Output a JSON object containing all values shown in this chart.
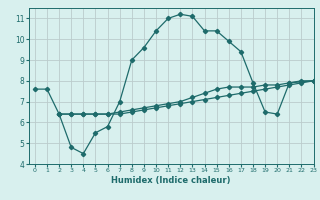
{
  "xlabel": "Humidex (Indice chaleur)",
  "bg_color": "#d8f0ee",
  "line_color": "#1e6b6b",
  "grid_color": "#bbcccc",
  "xlim": [
    -0.5,
    23
  ],
  "ylim": [
    4,
    11.5
  ],
  "xticks": [
    0,
    1,
    2,
    3,
    4,
    5,
    6,
    7,
    8,
    9,
    10,
    11,
    12,
    13,
    14,
    15,
    16,
    17,
    18,
    19,
    20,
    21,
    22,
    23
  ],
  "yticks": [
    4,
    5,
    6,
    7,
    8,
    9,
    10,
    11
  ],
  "line1": {
    "x": [
      0,
      1,
      2,
      3,
      4,
      5,
      6,
      7,
      8,
      9,
      10,
      11,
      12,
      13,
      14,
      15,
      16,
      17,
      18,
      19,
      20,
      21,
      22,
      23
    ],
    "y": [
      7.6,
      7.6,
      6.4,
      4.8,
      4.5,
      5.5,
      5.8,
      7.0,
      9.0,
      9.6,
      10.4,
      11.0,
      11.2,
      11.1,
      10.4,
      10.4,
      9.9,
      9.4,
      7.9,
      6.5,
      6.4,
      7.9,
      8.0,
      8.0
    ]
  },
  "line2": {
    "x": [
      2,
      3,
      4,
      5,
      6,
      7,
      8,
      9,
      10,
      11,
      12,
      13,
      14,
      15,
      16,
      17,
      18,
      19,
      20,
      21,
      22,
      23
    ],
    "y": [
      6.4,
      6.4,
      6.4,
      6.4,
      6.4,
      6.4,
      6.5,
      6.6,
      6.7,
      6.8,
      6.9,
      7.0,
      7.1,
      7.2,
      7.3,
      7.4,
      7.5,
      7.6,
      7.7,
      7.8,
      7.9,
      8.0
    ]
  },
  "line3": {
    "x": [
      2,
      3,
      4,
      5,
      6,
      7,
      8,
      9,
      10,
      11,
      12,
      13,
      14,
      15,
      16,
      17,
      18,
      19,
      20,
      21,
      22,
      23
    ],
    "y": [
      6.4,
      6.4,
      6.4,
      6.4,
      6.4,
      6.5,
      6.6,
      6.7,
      6.8,
      6.9,
      7.0,
      7.2,
      7.4,
      7.6,
      7.7,
      7.7,
      7.7,
      7.8,
      7.8,
      7.9,
      7.95,
      8.0
    ]
  }
}
